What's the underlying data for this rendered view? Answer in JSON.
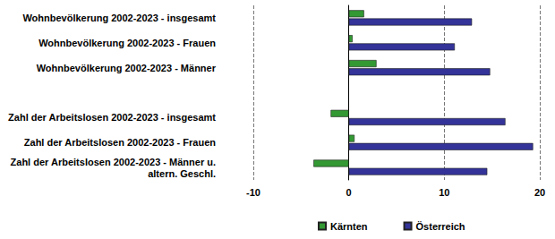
{
  "chart_data": {
    "type": "bar",
    "orientation": "horizontal",
    "categories": [
      "Wohnbevölkerung 2002-2023 - insgesamt",
      "Wohnbevölkerung 2002-2023 - Frauen",
      "Wohnbevölkerung 2002-2023 - Männer",
      null,
      "Zahl der Arbeitslosen 2002-2023 - insgesamt",
      "Zahl der Arbeitslosen 2002-2023 - Frauen",
      "Zahl der Arbeitslosen 2002-2023 - Männer u.\naltern. Geschl."
    ],
    "series": [
      {
        "name": "Kärnten",
        "color": "#339933",
        "values": [
          1.6,
          0.4,
          2.9,
          null,
          -1.9,
          0.6,
          -3.7
        ]
      },
      {
        "name": "Österreich",
        "color": "#333399",
        "values": [
          12.9,
          11.1,
          14.8,
          null,
          16.4,
          19.3,
          14.5
        ]
      }
    ],
    "xlim": [
      -10,
      20
    ],
    "xticks": [
      -10,
      0,
      10,
      20
    ],
    "grid": true,
    "legend": "bottom"
  }
}
